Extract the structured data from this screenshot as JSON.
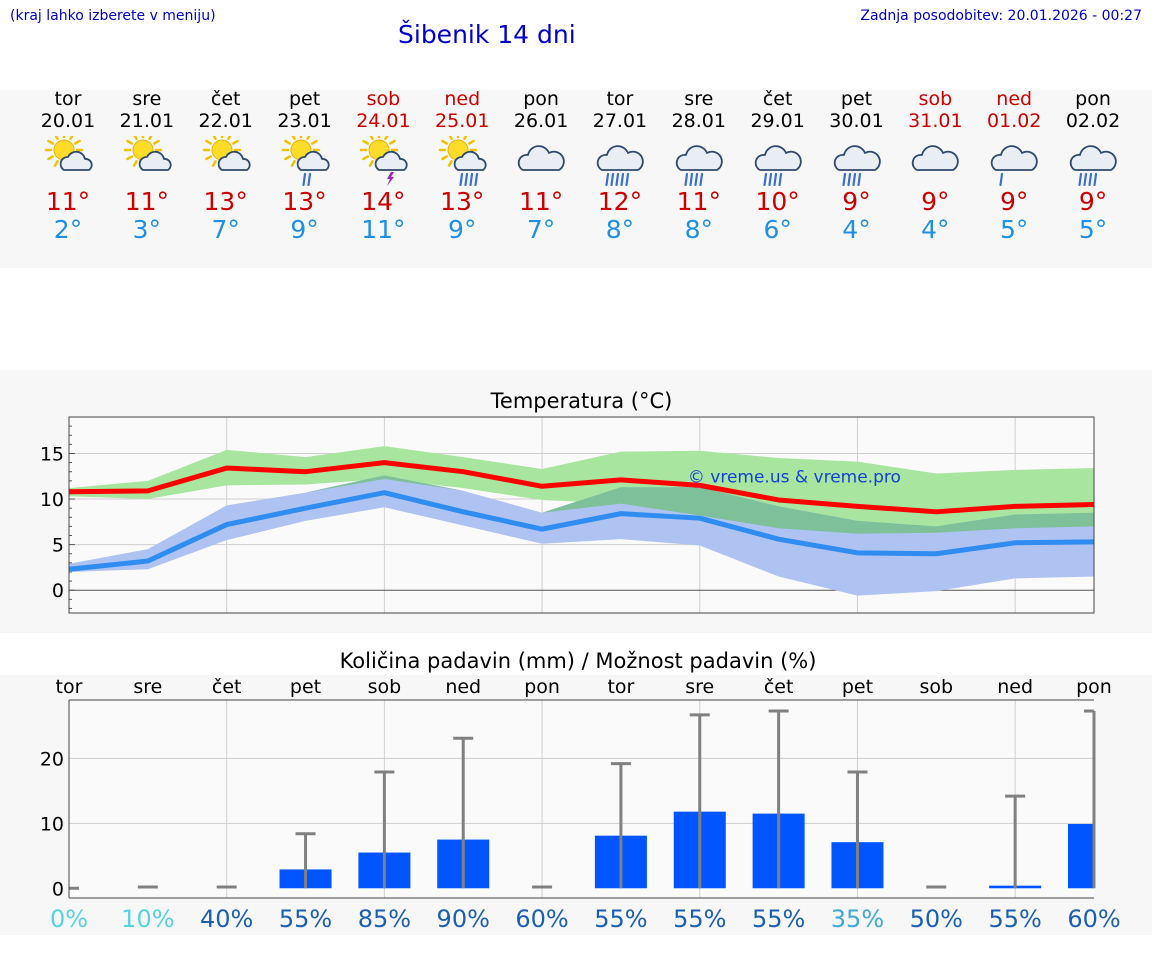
{
  "header": {
    "left_note": "(kraj lahko izberete v meniju)",
    "title": "Šibenik 14 dni",
    "updated": "Zadnja posodobitev: 20.01.2026 - 00:27"
  },
  "days": [
    {
      "name": "tor",
      "date": "20.01",
      "weekend": false,
      "icon": "sun-cloud-icon",
      "max": "11°",
      "min": "2°"
    },
    {
      "name": "sre",
      "date": "21.01",
      "weekend": false,
      "icon": "sun-cloud-icon",
      "max": "11°",
      "min": "3°"
    },
    {
      "name": "čet",
      "date": "22.01",
      "weekend": false,
      "icon": "sun-cloud-icon",
      "max": "13°",
      "min": "7°"
    },
    {
      "name": "pet",
      "date": "23.01",
      "weekend": false,
      "icon": "sun-cloud-rain-icon",
      "max": "13°",
      "min": "9°"
    },
    {
      "name": "sob",
      "date": "24.01",
      "weekend": true,
      "icon": "sun-cloud-storm-icon",
      "max": "14°",
      "min": "11°"
    },
    {
      "name": "ned",
      "date": "25.01",
      "weekend": true,
      "icon": "sun-cloud-heavy-rain-icon",
      "max": "13°",
      "min": "9°"
    },
    {
      "name": "pon",
      "date": "26.01",
      "weekend": false,
      "icon": "cloud-icon",
      "max": "11°",
      "min": "7°"
    },
    {
      "name": "tor",
      "date": "27.01",
      "weekend": false,
      "icon": "cloud-heavy-rain-icon",
      "max": "12°",
      "min": "8°"
    },
    {
      "name": "sre",
      "date": "28.01",
      "weekend": false,
      "icon": "cloud-rain-icon",
      "max": "11°",
      "min": "8°"
    },
    {
      "name": "čet",
      "date": "29.01",
      "weekend": false,
      "icon": "cloud-rain-icon",
      "max": "10°",
      "min": "6°"
    },
    {
      "name": "pet",
      "date": "30.01",
      "weekend": false,
      "icon": "cloud-rain-icon",
      "max": "9°",
      "min": "4°"
    },
    {
      "name": "sob",
      "date": "31.01",
      "weekend": true,
      "icon": "cloud-icon",
      "max": "9°",
      "min": "4°"
    },
    {
      "name": "ned",
      "date": "01.02",
      "weekend": true,
      "icon": "cloud-light-rain-icon",
      "max": "9°",
      "min": "5°"
    },
    {
      "name": "pon",
      "date": "02.02",
      "weekend": false,
      "icon": "cloud-rain-icon",
      "max": "9°",
      "min": "5°"
    }
  ],
  "colors": {
    "max_line": "#ff0000",
    "min_line": "#2f8cf0",
    "max_band": "#a8e6a0",
    "min_band": "#aec3f2",
    "overlap_band": "#7dc09a",
    "bar": "#0055ff",
    "error": "#808080",
    "pct_dark": "#1a5fb4",
    "pct_light": "#56d2e6"
  },
  "chart_data": [
    {
      "type": "line",
      "title": "Temperatura (°C)",
      "watermark": "© vreme.us & vreme.pro",
      "x": [
        0,
        1,
        2,
        3,
        4,
        5,
        6,
        7,
        8,
        9,
        10,
        11,
        12,
        13
      ],
      "ylim": [
        -2.5,
        19
      ],
      "yticks": [
        0,
        5,
        10,
        15
      ],
      "grid": true,
      "series": [
        {
          "name": "max",
          "values": [
            10.8,
            10.9,
            13.4,
            13.0,
            14.0,
            13.0,
            11.4,
            12.1,
            11.5,
            9.9,
            9.2,
            8.6,
            9.2,
            9.4
          ]
        },
        {
          "name": "min",
          "values": [
            2.3,
            3.2,
            7.2,
            9.0,
            10.7,
            8.6,
            6.7,
            8.4,
            7.9,
            5.6,
            4.1,
            4.0,
            5.2,
            5.3
          ]
        },
        {
          "name": "max_high",
          "values": [
            11.2,
            12.0,
            15.4,
            14.6,
            15.8,
            14.6,
            13.3,
            15.2,
            15.3,
            14.5,
            14.1,
            12.8,
            13.2,
            13.4
          ]
        },
        {
          "name": "max_low",
          "values": [
            10.3,
            10.0,
            11.5,
            11.6,
            12.2,
            11.2,
            9.9,
            9.5,
            8.2,
            6.8,
            6.2,
            6.3,
            6.8,
            7.0
          ]
        },
        {
          "name": "min_high",
          "values": [
            2.9,
            4.5,
            9.3,
            10.7,
            12.6,
            10.9,
            8.5,
            11.3,
            11.3,
            9.2,
            7.6,
            7.0,
            8.3,
            8.5
          ]
        },
        {
          "name": "min_low",
          "values": [
            2.0,
            2.3,
            5.5,
            7.6,
            9.1,
            7.1,
            5.1,
            5.6,
            4.9,
            1.5,
            -0.6,
            -0.1,
            1.3,
            1.5
          ]
        }
      ]
    },
    {
      "type": "bar",
      "title": "Količina padavin (mm) / Možnost padavin (%)",
      "categories": [
        "tor",
        "sre",
        "čet",
        "pet",
        "sob",
        "ned",
        "pon",
        "tor",
        "sre",
        "čet",
        "pet",
        "sob",
        "ned",
        "pon"
      ],
      "ylim": [
        -1.5,
        29
      ],
      "yticks": [
        0,
        10,
        20
      ],
      "values": [
        0,
        0,
        0,
        2.9,
        5.5,
        7.5,
        0,
        8.1,
        11.8,
        11.5,
        7.1,
        0,
        0.4,
        9.9
      ],
      "errors_high": [
        0,
        0.2,
        0.2,
        8.4,
        17.9,
        23.1,
        0.2,
        19.2,
        26.7,
        27.3,
        17.9,
        0.2,
        14.2,
        27.3
      ],
      "probability": [
        "0%",
        "10%",
        "40%",
        "55%",
        "85%",
        "90%",
        "60%",
        "55%",
        "55%",
        "55%",
        "35%",
        "50%",
        "55%",
        "60%"
      ]
    }
  ]
}
